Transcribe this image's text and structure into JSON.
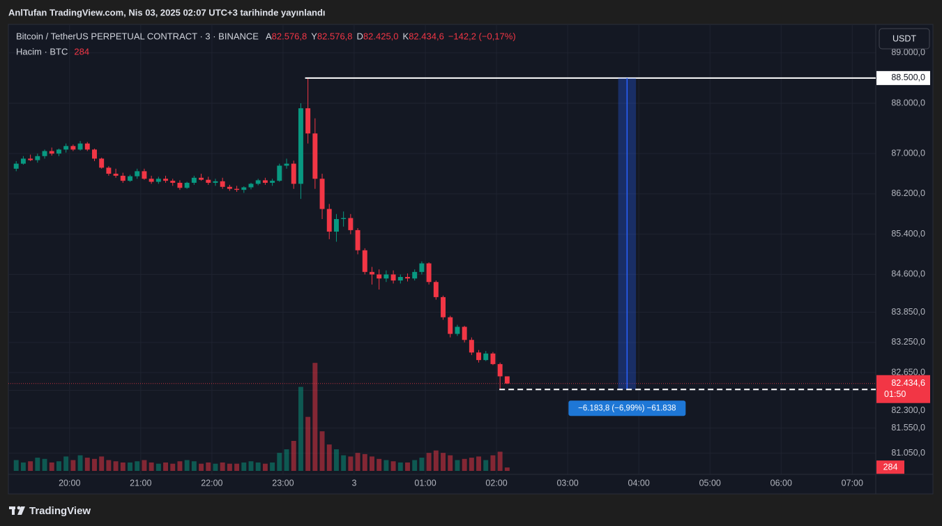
{
  "header": {
    "title": "AnlTufan TradingView.com, Nis 03, 2025 02:07 UTC+3 tarihinde yayınlandı"
  },
  "toolbar": {
    "currency": "USDT"
  },
  "footer": {
    "brand": "TradingView"
  },
  "chart_data": {
    "type": "candlestick",
    "title": "Bitcoin / TetherUS PERPETUAL CONTRACT · 3 · BINANCE",
    "ohlc_legend": [
      {
        "key": "A",
        "label": "82.576,8"
      },
      {
        "key": "Y",
        "label": "82.576,8"
      },
      {
        "key": "D",
        "label": "82.425,0"
      },
      {
        "key": "K",
        "label": "82.434,6"
      }
    ],
    "change_label": "−142,2 (−0,17%)",
    "volume_title": "Hacim · BTC",
    "x": [
      19.2,
      19.3,
      19.4,
      19.5,
      19.6,
      19.7,
      19.8,
      19.9,
      20.0,
      20.1,
      20.2,
      20.3,
      20.4,
      20.5,
      20.6,
      20.7,
      20.8,
      20.9,
      21.0,
      21.1,
      21.2,
      21.3,
      21.4,
      21.5,
      21.6,
      21.7,
      21.8,
      21.9,
      22.0,
      22.1,
      22.2,
      22.3,
      22.4,
      22.5,
      22.6,
      22.7,
      22.8,
      22.9,
      23.0,
      23.1,
      23.2,
      23.3,
      23.4,
      23.5,
      23.6,
      23.7,
      23.8,
      23.9,
      24.0,
      24.1,
      24.2,
      24.3,
      24.4,
      24.5,
      24.6,
      24.7,
      24.8,
      24.9,
      25.0,
      25.1,
      25.2,
      25.3,
      25.4,
      25.5,
      25.6,
      25.7,
      25.8,
      25.9,
      26.0,
      26.1
    ],
    "open": [
      86700,
      86800,
      86900,
      86870,
      86950,
      87050,
      87000,
      87080,
      87150,
      87080,
      87200,
      87080,
      86900,
      86720,
      86600,
      86560,
      86460,
      86550,
      86650,
      86500,
      86440,
      86500,
      86460,
      86420,
      86320,
      86420,
      86520,
      86480,
      86420,
      86450,
      86340,
      86300,
      86280,
      86330,
      86400,
      86470,
      86420,
      86460,
      86760,
      86800,
      86400,
      87900,
      87400,
      86500,
      85900,
      85450,
      85700,
      85720,
      85480,
      85080,
      84650,
      84600,
      84520,
      84600,
      84480,
      84550,
      84520,
      84650,
      84820,
      84450,
      84150,
      83750,
      83420,
      83560,
      83300,
      83050,
      82900,
      83030,
      82820,
      82576.8
    ],
    "high": [
      86850,
      86950,
      86980,
      87000,
      87080,
      87120,
      87100,
      87200,
      87180,
      87250,
      87230,
      87100,
      86920,
      86750,
      86700,
      86620,
      86580,
      86700,
      86700,
      86560,
      86540,
      86560,
      86500,
      86470,
      86440,
      86560,
      86600,
      86540,
      86500,
      86520,
      86380,
      86360,
      86350,
      86420,
      86500,
      86520,
      86500,
      86800,
      86900,
      86860,
      88000,
      88500,
      87700,
      86600,
      86000,
      85800,
      85850,
      85800,
      85520,
      85120,
      84750,
      84700,
      84680,
      84680,
      84600,
      84620,
      84700,
      84860,
      84840,
      84480,
      84180,
      83780,
      83600,
      83580,
      83350,
      83100,
      83080,
      83060,
      82850,
      82576.8
    ],
    "low": [
      86650,
      86780,
      86850,
      86820,
      86900,
      86960,
      86950,
      87020,
      87050,
      87060,
      87050,
      86850,
      86700,
      86560,
      86520,
      86420,
      86440,
      86500,
      86480,
      86400,
      86400,
      86420,
      86360,
      86280,
      86300,
      86380,
      86460,
      86380,
      86360,
      86300,
      86260,
      86240,
      86220,
      86290,
      86370,
      86380,
      86360,
      86440,
      86700,
      86300,
      86100,
      87200,
      86300,
      85700,
      85300,
      85250,
      85550,
      85400,
      85000,
      84600,
      84400,
      84300,
      84450,
      84420,
      84420,
      84460,
      84480,
      84600,
      84400,
      84100,
      83700,
      83350,
      83380,
      83250,
      83000,
      82850,
      82880,
      82800,
      82316.2,
      82425
    ],
    "close": [
      86800,
      86900,
      86870,
      86950,
      87050,
      87000,
      87080,
      87150,
      87080,
      87200,
      87080,
      86900,
      86720,
      86600,
      86560,
      86460,
      86550,
      86650,
      86500,
      86440,
      86500,
      86460,
      86420,
      86320,
      86420,
      86520,
      86480,
      86420,
      86450,
      86340,
      86300,
      86280,
      86330,
      86400,
      86470,
      86420,
      86460,
      86760,
      86800,
      86400,
      87900,
      87400,
      86500,
      85900,
      85450,
      85700,
      85720,
      85480,
      85080,
      84650,
      84600,
      84520,
      84600,
      84480,
      84550,
      84520,
      84650,
      84820,
      84450,
      84150,
      83750,
      83420,
      83560,
      83300,
      83050,
      82900,
      83030,
      82820,
      82576.8,
      82434.6
    ],
    "volume": [
      900,
      700,
      800,
      1100,
      1000,
      700,
      800,
      1200,
      900,
      1300,
      1100,
      1000,
      1200,
      900,
      800,
      700,
      700,
      800,
      900,
      700,
      600,
      700,
      600,
      800,
      900,
      800,
      600,
      700,
      600,
      700,
      600,
      600,
      700,
      800,
      700,
      600,
      700,
      1500,
      1800,
      2500,
      7000,
      4500,
      9000,
      3300,
      2200,
      1800,
      1300,
      1200,
      1500,
      1400,
      1200,
      1000,
      900,
      800,
      700,
      700,
      900,
      1100,
      1500,
      1700,
      1500,
      1300,
      900,
      1000,
      1100,
      1200,
      900,
      1300,
      1600,
      284
    ],
    "xlim": [
      19.14,
      31.33
    ],
    "xticks": [
      {
        "value": 20,
        "label": "20:00"
      },
      {
        "value": 21,
        "label": "21:00"
      },
      {
        "value": 22,
        "label": "22:00"
      },
      {
        "value": 23,
        "label": "23:00"
      },
      {
        "value": 24,
        "label": "3"
      },
      {
        "value": 25,
        "label": "01:00"
      },
      {
        "value": 26,
        "label": "02:00"
      },
      {
        "value": 27,
        "label": "03:00"
      },
      {
        "value": 28,
        "label": "04:00"
      },
      {
        "value": 29,
        "label": "05:00"
      },
      {
        "value": 30,
        "label": "06:00"
      },
      {
        "value": 31,
        "label": "07:00"
      }
    ],
    "ylim": [
      80630,
      89565
    ],
    "yticks": [
      {
        "value": 89000,
        "label": "89.000,0"
      },
      {
        "value": 88000,
        "label": "88.000,0"
      },
      {
        "value": 87000,
        "label": "87.000,0"
      },
      {
        "value": 86200,
        "label": "86.200,0"
      },
      {
        "value": 85400,
        "label": "85.400,0"
      },
      {
        "value": 84600,
        "label": "84.600,0"
      },
      {
        "value": 83850,
        "label": "83.850,0"
      },
      {
        "value": 83250,
        "label": "83.250,0"
      },
      {
        "value": 82650,
        "label": "82.650,0"
      },
      {
        "value": 82300,
        "label": "82.300,0"
      },
      {
        "value": 81550,
        "label": "81.550,0"
      },
      {
        "value": 81050,
        "label": "81.050,0"
      }
    ],
    "volume_lim": [
      0,
      9300
    ],
    "up_color": "#089981",
    "down_color": "#f23645",
    "grid": true,
    "last_price": {
      "value": 82434.6,
      "label": "82.434,6",
      "countdown": "01:50"
    },
    "hline": {
      "value": 88500,
      "label": "88.500,0",
      "x_start": 23.31
    },
    "measure": {
      "x": [
        27.71,
        27.96
      ],
      "from": 88500,
      "to": 82316.2,
      "line_start": 26.04,
      "label": "−6.183,8 (−6,99%) −61.838"
    }
  }
}
